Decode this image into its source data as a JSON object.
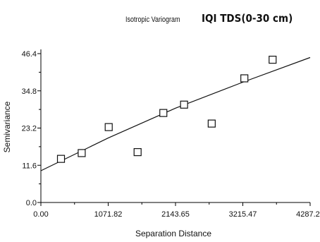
{
  "chart_data": {
    "type": "scatter",
    "title_prefix": "Isotropic Variogram",
    "title": "IQI TDS(0-30 cm)",
    "xlabel": "Separation Distance",
    "ylabel": "Semivariance",
    "xlim": [
      0,
      4287.29
    ],
    "ylim": [
      0,
      46.4
    ],
    "xticks": [
      0,
      1071.82,
      2143.65,
      3215.47,
      4287.29
    ],
    "xtick_labels": [
      "0.00",
      "1071.82",
      "2143.65",
      "3215.47",
      "4287.29"
    ],
    "yticks": [
      0,
      11.6,
      23.2,
      34.8,
      46.4
    ],
    "ytick_labels": [
      "0.0",
      "11.6",
      "23.2",
      "34.8",
      "46.4"
    ],
    "points": [
      {
        "x": 320,
        "y": 13.6
      },
      {
        "x": 650,
        "y": 15.4
      },
      {
        "x": 1080,
        "y": 23.5
      },
      {
        "x": 1540,
        "y": 15.7
      },
      {
        "x": 1950,
        "y": 27.9
      },
      {
        "x": 2280,
        "y": 30.5
      },
      {
        "x": 2720,
        "y": 24.6
      },
      {
        "x": 3240,
        "y": 38.7
      },
      {
        "x": 3690,
        "y": 44.5
      }
    ],
    "model_curve": [
      {
        "x": 0,
        "y": 9.9
      },
      {
        "x": 1071.82,
        "y": 20.1
      },
      {
        "x": 2143.65,
        "y": 29.4
      },
      {
        "x": 3215.47,
        "y": 37.5
      },
      {
        "x": 4287.29,
        "y": 45.2
      }
    ],
    "grid": false,
    "legend": "none"
  }
}
